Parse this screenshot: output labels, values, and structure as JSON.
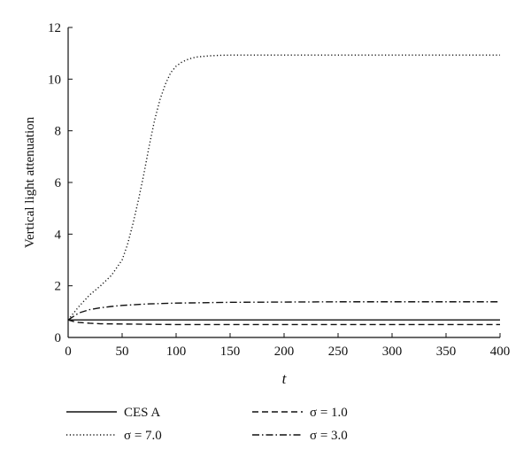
{
  "chart_data": {
    "type": "line",
    "title": "",
    "xlabel": "t",
    "ylabel": "Vertical light attenuation",
    "xlim": [
      0,
      400
    ],
    "ylim": [
      0,
      12
    ],
    "xticks": [
      0,
      50,
      100,
      150,
      200,
      250,
      300,
      350,
      400
    ],
    "yticks": [
      0,
      2,
      4,
      6,
      8,
      10,
      12
    ],
    "grid": false,
    "legend_position": "bottom",
    "series": [
      {
        "name": "CES A",
        "style": "solid",
        "x": [
          0,
          400
        ],
        "y": [
          0.68,
          0.68
        ]
      },
      {
        "name": "σ = 1.0",
        "style": "dashed",
        "x": [
          0,
          5,
          10,
          20,
          30,
          50,
          75,
          100,
          150,
          200,
          300,
          400
        ],
        "y": [
          0.68,
          0.62,
          0.58,
          0.55,
          0.53,
          0.52,
          0.51,
          0.5,
          0.5,
          0.5,
          0.5,
          0.5
        ]
      },
      {
        "name": "σ = 7.0",
        "style": "dotted",
        "x": [
          0,
          10,
          20,
          30,
          40,
          50,
          55,
          60,
          65,
          70,
          75,
          80,
          85,
          90,
          95,
          100,
          105,
          110,
          115,
          120,
          130,
          140,
          150,
          175,
          200,
          250,
          300,
          350,
          400
        ],
        "y": [
          0.68,
          1.2,
          1.65,
          2.0,
          2.4,
          3.0,
          3.6,
          4.4,
          5.3,
          6.3,
          7.4,
          8.4,
          9.2,
          9.8,
          10.25,
          10.5,
          10.65,
          10.75,
          10.82,
          10.86,
          10.9,
          10.92,
          10.93,
          10.93,
          10.93,
          10.93,
          10.93,
          10.93,
          10.93
        ]
      },
      {
        "name": "σ = 3.0",
        "style": "dashdot",
        "x": [
          0,
          10,
          20,
          30,
          40,
          50,
          75,
          100,
          150,
          200,
          250,
          300,
          350,
          400
        ],
        "y": [
          0.68,
          0.95,
          1.08,
          1.15,
          1.2,
          1.24,
          1.3,
          1.33,
          1.36,
          1.37,
          1.38,
          1.38,
          1.38,
          1.38
        ]
      }
    ]
  }
}
